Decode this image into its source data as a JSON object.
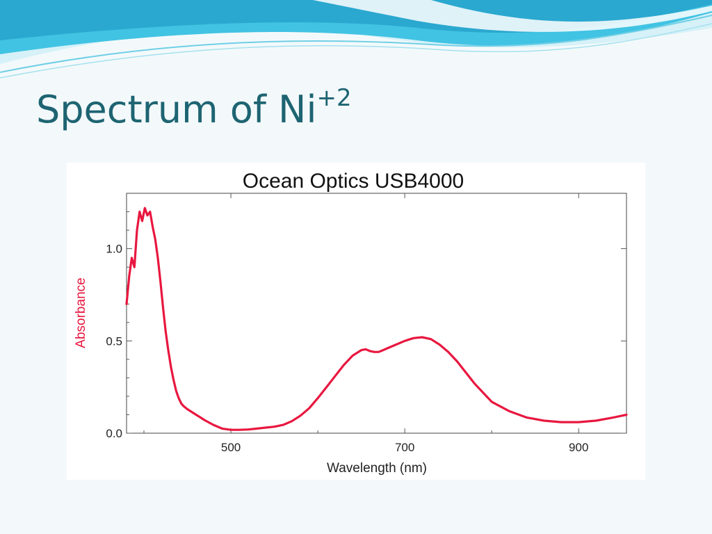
{
  "slide": {
    "title_main": "Spectrum of Ni",
    "title_superscript": "+2"
  },
  "colors": {
    "title": "#1e6472",
    "background": "#f3f9fb",
    "wave_primary": "#2bb6d9",
    "series": "#e8173f",
    "ylabel": "#e8173f"
  },
  "chart_data": {
    "type": "line",
    "title": "Ocean Optics USB4000",
    "xlabel": "Wavelength (nm)",
    "ylabel": "Absorbance",
    "xlim": [
      380,
      955
    ],
    "ylim": [
      0,
      1.3
    ],
    "x_ticks": [
      500,
      700,
      900
    ],
    "x_minor_ticks": [
      400,
      600,
      800
    ],
    "y_ticks": [
      0.0,
      0.5,
      1.0
    ],
    "y_tick_labels": [
      "0.0",
      "0.5",
      "1.0"
    ],
    "y_minor_ticks": [
      0.1,
      0.2,
      0.3,
      0.4,
      0.6,
      0.7,
      0.8,
      0.9,
      1.1,
      1.2
    ],
    "grid": false,
    "series": [
      {
        "color": "#e8173f",
        "x": [
          380,
          383,
          386,
          389,
          392,
          395,
          398,
          401,
          404,
          407,
          410,
          413,
          416,
          419,
          422,
          425,
          428,
          431,
          434,
          437,
          440,
          443,
          446,
          450,
          455,
          460,
          465,
          470,
          480,
          490,
          500,
          510,
          520,
          530,
          540,
          550,
          560,
          570,
          580,
          590,
          600,
          610,
          620,
          630,
          640,
          650,
          655,
          660,
          665,
          670,
          675,
          680,
          690,
          700,
          710,
          720,
          730,
          740,
          750,
          760,
          770,
          780,
          790,
          800,
          820,
          840,
          860,
          880,
          900,
          920,
          940,
          955
        ],
        "y": [
          0.7,
          0.85,
          0.95,
          0.9,
          1.1,
          1.2,
          1.15,
          1.22,
          1.18,
          1.2,
          1.12,
          1.05,
          0.95,
          0.82,
          0.68,
          0.55,
          0.45,
          0.36,
          0.29,
          0.23,
          0.19,
          0.16,
          0.145,
          0.13,
          0.115,
          0.1,
          0.085,
          0.07,
          0.045,
          0.025,
          0.018,
          0.018,
          0.02,
          0.025,
          0.03,
          0.035,
          0.045,
          0.065,
          0.095,
          0.135,
          0.19,
          0.25,
          0.31,
          0.37,
          0.42,
          0.45,
          0.455,
          0.445,
          0.44,
          0.44,
          0.45,
          0.46,
          0.48,
          0.5,
          0.515,
          0.52,
          0.51,
          0.48,
          0.44,
          0.39,
          0.33,
          0.27,
          0.22,
          0.17,
          0.12,
          0.085,
          0.068,
          0.06,
          0.06,
          0.068,
          0.085,
          0.1
        ]
      }
    ]
  }
}
